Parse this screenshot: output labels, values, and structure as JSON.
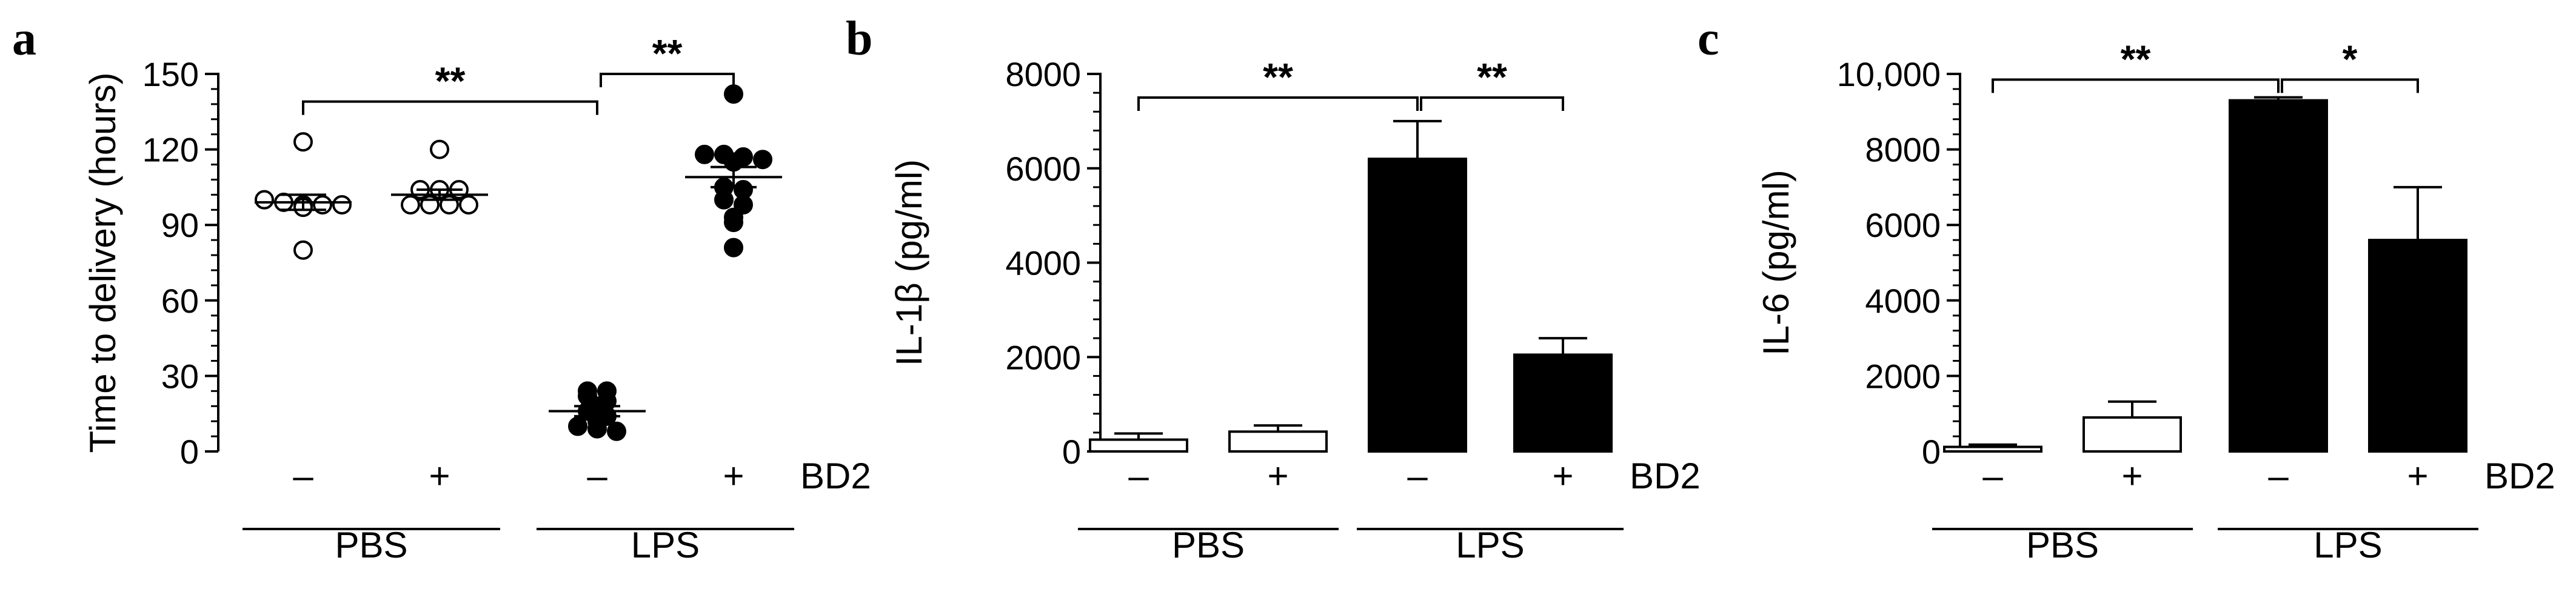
{
  "figure": {
    "panels": [
      {
        "letter": "a"
      },
      {
        "letter": "b"
      },
      {
        "letter": "c"
      }
    ]
  },
  "chart_data": [
    {
      "type": "scatter",
      "panel": "a",
      "ylabel": "Time to delivery (hours)",
      "ylim": [
        0,
        150
      ],
      "yticks": [
        0,
        30,
        60,
        90,
        120,
        150
      ],
      "conditions": [
        "–",
        "+",
        "–",
        "+"
      ],
      "condition_label": "BD2",
      "groups": [
        {
          "label": "PBS",
          "spans": [
            0,
            1
          ]
        },
        {
          "label": "LPS",
          "spans": [
            2,
            3
          ]
        }
      ],
      "series": [
        {
          "fill": "open",
          "mean": 99,
          "sem": 3,
          "values": [
            123,
            100,
            99,
            98,
            98,
            98,
            97,
            80
          ]
        },
        {
          "fill": "open",
          "mean": 102,
          "sem": 2,
          "values": [
            120,
            104,
            104,
            104,
            98,
            98,
            98,
            98
          ]
        },
        {
          "fill": "filled",
          "mean": 16,
          "sem": 2,
          "values": [
            24,
            24,
            22,
            20,
            18,
            16,
            14,
            12,
            10,
            9,
            8
          ]
        },
        {
          "fill": "filled",
          "mean": 109,
          "sem": 4,
          "values": [
            142,
            118,
            118,
            117,
            116,
            115,
            105,
            104,
            100,
            98,
            93,
            91,
            81
          ]
        }
      ],
      "significance": [
        {
          "from": 0,
          "to": 2,
          "y": 139,
          "label": "**"
        },
        {
          "from": 2,
          "to": 3,
          "y": 150,
          "label": "**"
        }
      ]
    },
    {
      "type": "bar",
      "panel": "b",
      "ylabel": "IL-1β (pg/ml)",
      "ylim": [
        0,
        8000
      ],
      "yticks": [
        0,
        2000,
        4000,
        6000,
        8000
      ],
      "conditions": [
        "–",
        "+",
        "–",
        "+"
      ],
      "condition_label": "BD2",
      "groups": [
        {
          "label": "PBS",
          "spans": [
            0,
            1
          ]
        },
        {
          "label": "LPS",
          "spans": [
            2,
            3
          ]
        }
      ],
      "values": [
        250,
        420,
        6200,
        2050
      ],
      "errors": [
        130,
        130,
        800,
        350
      ],
      "fills": [
        "open",
        "open",
        "filled",
        "filled"
      ],
      "significance": [
        {
          "from": 0,
          "to": 2,
          "y": 7500,
          "label": "**"
        },
        {
          "from": 2,
          "to": 3,
          "y": 7500,
          "label": "**"
        }
      ]
    },
    {
      "type": "bar",
      "panel": "c",
      "ylabel": "IL-6 (pg/ml)",
      "ylim": [
        0,
        10000
      ],
      "yticks": [
        0,
        2000,
        4000,
        6000,
        8000,
        10000
      ],
      "ytick_labels": [
        "0",
        "2000",
        "4000",
        "6000",
        "8000",
        "10,000"
      ],
      "conditions": [
        "–",
        "+",
        "–",
        "+"
      ],
      "condition_label": "BD2",
      "groups": [
        {
          "label": "PBS",
          "spans": [
            0,
            1
          ]
        },
        {
          "label": "LPS",
          "spans": [
            2,
            3
          ]
        }
      ],
      "values": [
        120,
        900,
        9300,
        5600
      ],
      "errors": [
        60,
        420,
        80,
        1400
      ],
      "fills": [
        "open",
        "open",
        "filled",
        "filled"
      ],
      "significance": [
        {
          "from": 0,
          "to": 2,
          "y": 9850,
          "label": "**"
        },
        {
          "from": 2,
          "to": 3,
          "y": 9850,
          "label": "*"
        }
      ]
    }
  ]
}
